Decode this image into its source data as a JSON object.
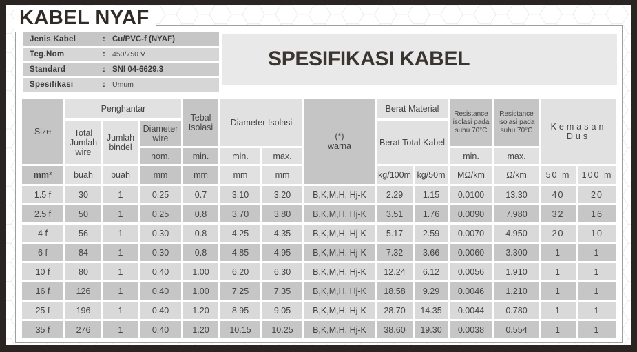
{
  "page_title": "KABEL NYAF",
  "info_panel": {
    "separator": ":",
    "rows": [
      {
        "label": "Jenis Kabel",
        "value": "Cu/PVC-f (NYAF)"
      },
      {
        "label": "Teg.Nom",
        "value": "450/750 V"
      },
      {
        "label": "Standard",
        "value": "SNI 04-6629.3"
      },
      {
        "label": "Spesifikasi",
        "value": "Umum"
      }
    ]
  },
  "banner": {
    "title": "SPESIFIKASI KABEL"
  },
  "table": {
    "headers": {
      "size": "Size",
      "penghantar": "Penghantar",
      "total_jumlah_wire": "Total Jumlah wire",
      "jumlah_bindel": "Jumlah bindel",
      "diameter_wire": "Diameter wire",
      "nom": "nom.",
      "tebal_isolasi": "Tebal Isolasi",
      "min": "min.",
      "max": "max.",
      "diameter_isolasi": "Diameter Isolasi",
      "warna_line1": "(*)",
      "warna_line2": "warna",
      "berat_material": "Berat Material",
      "berat_total_kabel": "Berat Total Kabel",
      "resistance_min": "Resistance isolasi pada suhu 70°C",
      "resistance_max": "Resistance isolasi pada suhu 70°C",
      "kemasan_dus": "Kemasan Dus"
    },
    "units": [
      "mm²",
      "buah",
      "buah",
      "mm",
      "mm",
      "mm",
      "mm",
      "",
      "kg/100m",
      "kg/50m",
      "MΩ/km",
      "Ω/km",
      "50 m",
      "100 m"
    ],
    "rows": [
      [
        "1.5 f",
        "30",
        "1",
        "0.25",
        "0.7",
        "3.10",
        "3.20",
        "B,K,M,H, Hj-K",
        "2.29",
        "1.15",
        "0.0100",
        "13.30",
        "40",
        "20"
      ],
      [
        "2.5 f",
        "50",
        "1",
        "0.25",
        "0.8",
        "3.70",
        "3.80",
        "B,K,M,H, Hj-K",
        "3.51",
        "1.76",
        "0.0090",
        "7.980",
        "32",
        "16"
      ],
      [
        "4 f",
        "56",
        "1",
        "0.30",
        "0.8",
        "4.25",
        "4.35",
        "B,K,M,H, Hj-K",
        "5.17",
        "2.59",
        "0.0070",
        "4.950",
        "20",
        "10"
      ],
      [
        "6 f",
        "84",
        "1",
        "0.30",
        "0.8",
        "4.85",
        "4.95",
        "B,K,M,H, Hj-K",
        "7.32",
        "3.66",
        "0.0060",
        "3.300",
        "1",
        "1"
      ],
      [
        "10 f",
        "80",
        "1",
        "0.40",
        "1.00",
        "6.20",
        "6.30",
        "B,K,M,H, Hj-K",
        "12.24",
        "6.12",
        "0.0056",
        "1.910",
        "1",
        "1"
      ],
      [
        "16 f",
        "126",
        "1",
        "0.40",
        "1.00",
        "7.25",
        "7.35",
        "B,K,M,H, Hj-K",
        "18.58",
        "9.29",
        "0.0046",
        "1.210",
        "1",
        "1"
      ],
      [
        "25 f",
        "196",
        "1",
        "0.40",
        "1.20",
        "8.95",
        "9.05",
        "B,K,M,H, Hj-K",
        "28.70",
        "14.35",
        "0.0044",
        "0.780",
        "1",
        "1"
      ],
      [
        "35 f",
        "276",
        "1",
        "0.40",
        "1.20",
        "10.15",
        "10.25",
        "B,K,M,H, Hj-K",
        "38.60",
        "19.30",
        "0.0038",
        "0.554",
        "1",
        "1"
      ]
    ]
  }
}
